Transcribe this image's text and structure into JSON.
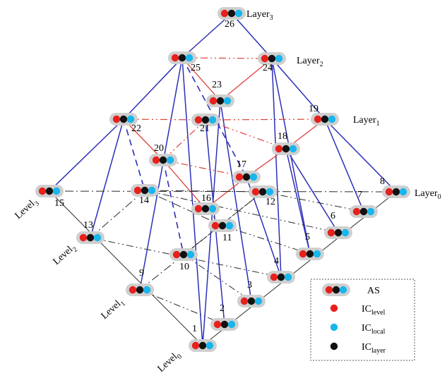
{
  "colors": {
    "blue_edge": "#2b2fb8",
    "red_edge": "#e0403a",
    "dark_edge": "#2a2a2a",
    "node_red": "#e8201c",
    "node_black": "#111111",
    "node_cyan": "#18b6ec",
    "node_halo": "#cfcfcf"
  },
  "nodes": [
    {
      "id": "1",
      "label": "1"
    },
    {
      "id": "2",
      "label": "2"
    },
    {
      "id": "3",
      "label": "3"
    },
    {
      "id": "4",
      "label": "4"
    },
    {
      "id": "5",
      "label": "5"
    },
    {
      "id": "6",
      "label": "6"
    },
    {
      "id": "7",
      "label": "7"
    },
    {
      "id": "8",
      "label": "8"
    },
    {
      "id": "9",
      "label": "9"
    },
    {
      "id": "10",
      "label": "10"
    },
    {
      "id": "11",
      "label": "11"
    },
    {
      "id": "12",
      "label": "12"
    },
    {
      "id": "13",
      "label": "13"
    },
    {
      "id": "14",
      "label": "14"
    },
    {
      "id": "15",
      "label": "15"
    },
    {
      "id": "16",
      "label": "16"
    },
    {
      "id": "17",
      "label": "17"
    },
    {
      "id": "18",
      "label": "18"
    },
    {
      "id": "19",
      "label": "19"
    },
    {
      "id": "20",
      "label": "20"
    },
    {
      "id": "21",
      "label": "21"
    },
    {
      "id": "22",
      "label": "22"
    },
    {
      "id": "23",
      "label": "23"
    },
    {
      "id": "24",
      "label": "24"
    },
    {
      "id": "25",
      "label": "25"
    },
    {
      "id": "26",
      "label": "26"
    }
  ],
  "level_labels": [
    {
      "base": "Level",
      "sub": "0"
    },
    {
      "base": "Level",
      "sub": "1"
    },
    {
      "base": "Level",
      "sub": "2"
    },
    {
      "base": "Level",
      "sub": "3"
    }
  ],
  "layer_labels": [
    {
      "base": "Layer",
      "sub": "0"
    },
    {
      "base": "Layer",
      "sub": "1"
    },
    {
      "base": "Layer",
      "sub": "2"
    },
    {
      "base": "Layer",
      "sub": "3"
    }
  ],
  "legend": {
    "items": [
      {
        "base": "AS",
        "sub": ""
      },
      {
        "base": "IC",
        "sub": "level"
      },
      {
        "base": "IC",
        "sub": "local"
      },
      {
        "base": "IC",
        "sub": "layer"
      }
    ]
  }
}
